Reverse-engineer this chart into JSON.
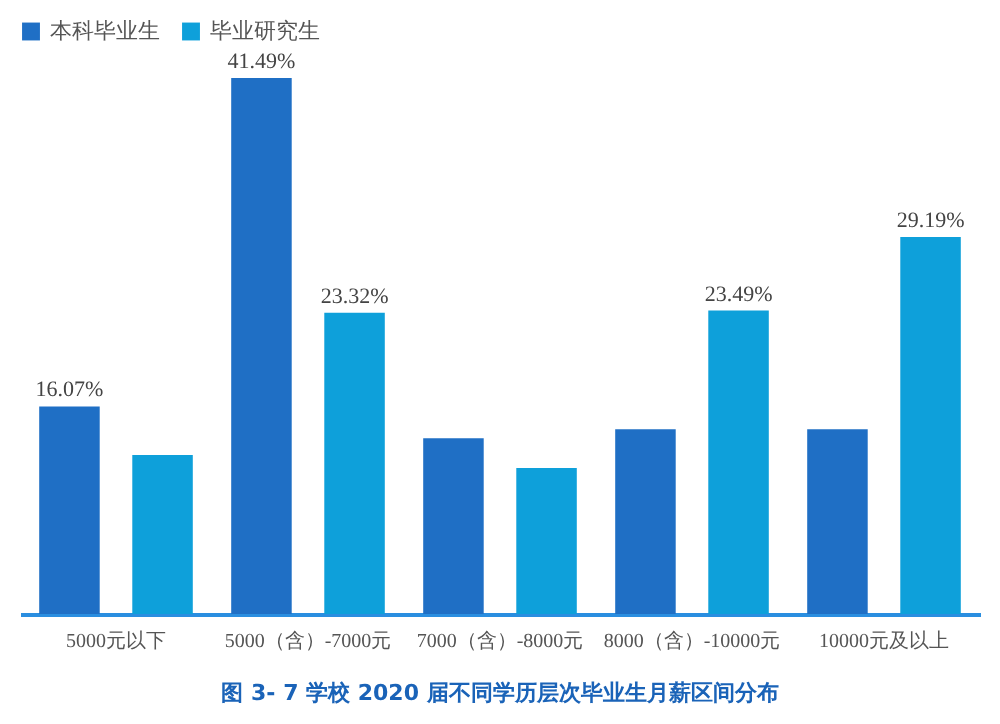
{
  "chart_data": {
    "type": "bar",
    "title": "图 3- 7    学校 2020 届不同学历层次毕业生月薪区间分布",
    "categories": [
      "5000元以下",
      "5000（含）-7000元",
      "7000（含）-8000元",
      "8000（含）-10000元",
      "10000元及以上"
    ],
    "series": [
      {
        "name": "本科毕业生",
        "color": "#1f6fc5",
        "values": [
          16.07,
          41.49,
          13.6,
          14.3,
          14.3
        ],
        "value_labels": [
          "16.07%",
          "41.49%",
          null,
          null,
          null
        ]
      },
      {
        "name": "毕业研究生",
        "color": "#0ea0da",
        "values": [
          12.3,
          23.32,
          11.3,
          23.49,
          29.19
        ],
        "value_labels": [
          null,
          "23.32%",
          null,
          "23.49%",
          "29.19%"
        ]
      }
    ],
    "legend": "top",
    "grid": false
  }
}
